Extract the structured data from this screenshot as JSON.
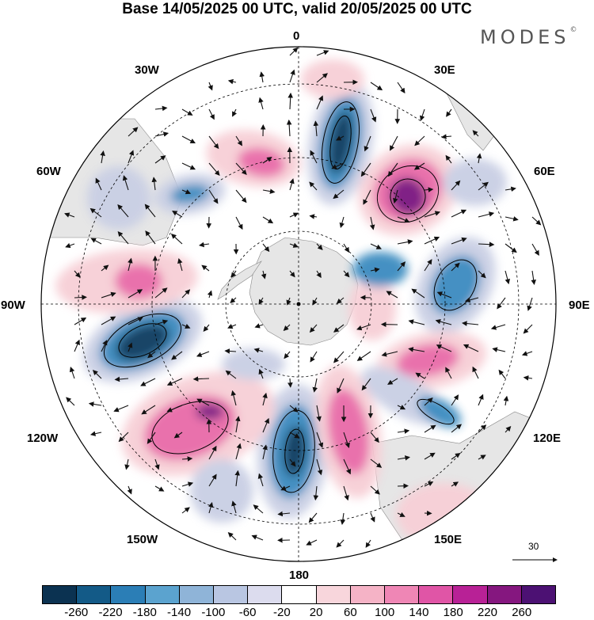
{
  "title": "Base 14/05/2025 00 UTC, valid 20/05/2025 00 UTC",
  "brand": "MODES",
  "brand_mark": "©",
  "map": {
    "projection": "south-polar-stereographic",
    "longitude_labels": {
      "top": "0",
      "top_right": "30E",
      "right_upper": "60E",
      "right": "90E",
      "right_lower": "120E",
      "bottom_right": "150E",
      "bottom": "180",
      "bottom_left": "150W",
      "left_lower": "120W",
      "left": "90W",
      "left_upper": "60W",
      "top_left": "30W"
    },
    "reference_vector_label": "30",
    "colors": {
      "neg_strong": "#0f3a5e",
      "neg_mid": "#3a8bc0",
      "neg_weak": "#c9cfe4",
      "pos_weak": "#f7cfd6",
      "pos_mid": "#e86aa8",
      "pos_strong": "#7a1580",
      "land": "#e6e6e6"
    }
  },
  "colorbar": {
    "labels": [
      "-260",
      "-220",
      "-180",
      "-140",
      "-100",
      "-60",
      "-20",
      "20",
      "60",
      "100",
      "140",
      "180",
      "220",
      "260"
    ],
    "colors": [
      "#0b3251",
      "#135a87",
      "#2b7eb6",
      "#5ba3cf",
      "#8fb4d8",
      "#b9c6e2",
      "#dcdcee",
      "#ffffff",
      "#f8d6dc",
      "#f5b3c6",
      "#ef86b5",
      "#e055a6",
      "#b82196",
      "#85177f",
      "#4c1173"
    ]
  }
}
